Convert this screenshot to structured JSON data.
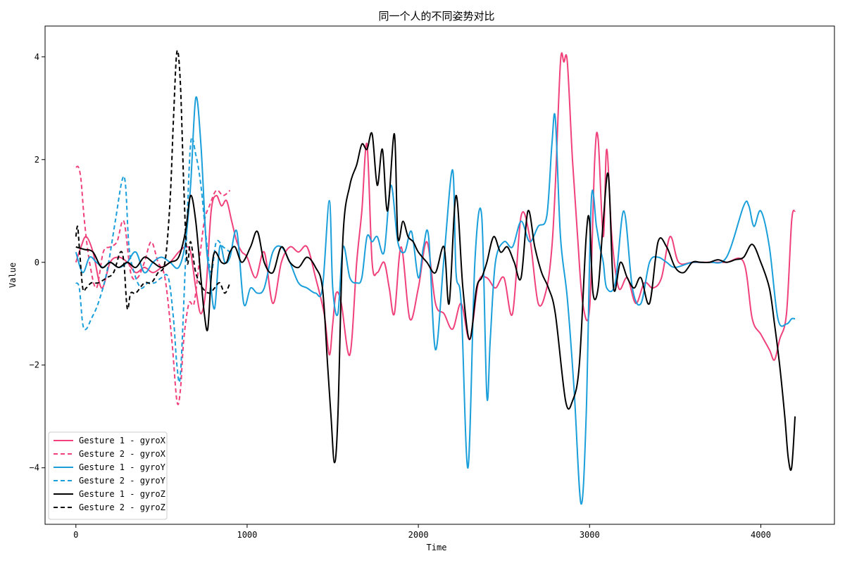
{
  "chart_data": {
    "type": "line",
    "title": "同一个人的不同姿势对比",
    "xlabel": "Time",
    "ylabel": "Value",
    "xlim": [
      -180,
      4430
    ],
    "ylim": [
      -5.1,
      4.6
    ],
    "xticks": [
      0,
      1000,
      2000,
      3000,
      4000
    ],
    "yticks": [
      -4,
      -2,
      0,
      2,
      4
    ],
    "grid": false,
    "legend_position": "lower-left",
    "series": [
      {
        "name": "Gesture 1 - gyroX",
        "color": "#F0417A",
        "dash": "solid",
        "x": [
          0,
          30,
          60,
          100,
          150,
          200,
          250,
          300,
          350,
          400,
          450,
          500,
          550,
          600,
          640,
          670,
          700,
          730,
          760,
          790,
          820,
          850,
          880,
          910,
          940,
          970,
          1000,
          1050,
          1100,
          1150,
          1200,
          1250,
          1300,
          1350,
          1400,
          1450,
          1480,
          1500,
          1520,
          1550,
          1600,
          1640,
          1670,
          1700,
          1730,
          1760,
          1800,
          1830,
          1860,
          1900,
          1950,
          2000,
          2050,
          2100,
          2150,
          2200,
          2250,
          2300,
          2350,
          2400,
          2450,
          2500,
          2550,
          2600,
          2650,
          2700,
          2750,
          2780,
          2800,
          2830,
          2850,
          2870,
          2900,
          2930,
          2960,
          3000,
          3030,
          3050,
          3080,
          3100,
          3130,
          3170,
          3220,
          3270,
          3320,
          3370,
          3420,
          3470,
          3520,
          3600,
          3700,
          3800,
          3900,
          3950,
          4000,
          4050,
          4080,
          4110,
          4150,
          4180,
          4200
        ],
        "y": [
          0.0,
          0.3,
          0.5,
          0.2,
          -0.5,
          0.0,
          0.1,
          0.0,
          -0.2,
          -0.1,
          -0.2,
          -0.1,
          0.0,
          0.2,
          0.3,
          0.2,
          -0.5,
          -1.0,
          -0.5,
          1.0,
          1.3,
          1.1,
          1.2,
          0.8,
          0.4,
          0.2,
          0.1,
          -0.3,
          0.2,
          -0.8,
          0.0,
          0.3,
          0.2,
          0.3,
          -0.3,
          -1.0,
          -1.8,
          -1.2,
          -0.6,
          -0.8,
          -1.8,
          0.0,
          1.0,
          2.3,
          0.0,
          -0.2,
          0.0,
          -0.5,
          -1.0,
          0.3,
          -1.1,
          -0.5,
          0.4,
          -0.8,
          -1.0,
          -1.3,
          -0.8,
          -1.5,
          -0.4,
          -0.3,
          -0.5,
          -0.3,
          -1.0,
          0.9,
          0.5,
          -0.8,
          -0.5,
          0.3,
          1.5,
          3.9,
          3.9,
          3.9,
          2.0,
          0.5,
          -0.8,
          -0.9,
          2.0,
          2.4,
          0.5,
          2.2,
          0.5,
          -0.5,
          -0.3,
          -0.8,
          -0.4,
          -0.5,
          -0.3,
          0.5,
          0.0,
          0.0,
          0.0,
          0.0,
          0.0,
          -1.1,
          -1.4,
          -1.7,
          -1.9,
          -1.5,
          -1.0,
          0.8,
          1.0
        ]
      },
      {
        "name": "Gesture 2 - gyroX",
        "color": "#F0417A",
        "dash": "dashed",
        "x": [
          0,
          15,
          30,
          50,
          80,
          120,
          160,
          200,
          240,
          280,
          320,
          360,
          400,
          440,
          480,
          520,
          560,
          590,
          610,
          630,
          660,
          690,
          720,
          750,
          780,
          820,
          860,
          900
        ],
        "y": [
          1.85,
          1.85,
          1.6,
          0.8,
          0.0,
          -0.5,
          0.2,
          0.3,
          0.4,
          0.8,
          -0.2,
          -0.3,
          0.0,
          0.4,
          0.0,
          -0.3,
          -1.5,
          -2.7,
          -2.5,
          -1.5,
          -0.8,
          -0.8,
          0.0,
          0.8,
          1.1,
          1.4,
          1.3,
          1.4
        ]
      },
      {
        "name": "Gesture 1 - gyroY",
        "color": "#1A9FDB",
        "dash": "solid",
        "x": [
          0,
          40,
          80,
          120,
          160,
          200,
          250,
          300,
          350,
          400,
          450,
          500,
          550,
          600,
          640,
          670,
          700,
          730,
          760,
          780,
          810,
          840,
          870,
          900,
          940,
          980,
          1020,
          1060,
          1100,
          1150,
          1200,
          1250,
          1300,
          1350,
          1400,
          1440,
          1480,
          1500,
          1530,
          1560,
          1600,
          1640,
          1670,
          1700,
          1730,
          1760,
          1800,
          1840,
          1880,
          1920,
          1960,
          2000,
          2030,
          2060,
          2100,
          2150,
          2200,
          2220,
          2250,
          2290,
          2330,
          2370,
          2400,
          2420,
          2450,
          2500,
          2550,
          2600,
          2650,
          2700,
          2750,
          2780,
          2800,
          2830,
          2870,
          2910,
          2950,
          2980,
          3010,
          3040,
          3060,
          3080,
          3100,
          3150,
          3200,
          3250,
          3300,
          3350,
          3400,
          3450,
          3500,
          3600,
          3700,
          3800,
          3900,
          3930,
          3960,
          4000,
          4050,
          4100,
          4150,
          4180,
          4200
        ],
        "y": [
          0.2,
          -0.2,
          0.1,
          0.0,
          -0.1,
          0.0,
          -0.1,
          0.0,
          0.2,
          -0.2,
          0.0,
          0.1,
          0.0,
          -0.1,
          0.4,
          1.5,
          3.2,
          2.3,
          0.4,
          -0.2,
          -0.9,
          0.3,
          0.0,
          0.1,
          0.6,
          -0.8,
          -0.5,
          -0.6,
          -0.5,
          0.2,
          0.3,
          0.0,
          -0.4,
          -0.5,
          -0.6,
          -0.5,
          1.2,
          -0.5,
          -1.0,
          0.3,
          -0.3,
          -0.4,
          -0.3,
          0.5,
          0.4,
          0.5,
          0.2,
          1.5,
          0.4,
          0.2,
          0.6,
          -0.3,
          0.3,
          0.5,
          -1.7,
          0.1,
          1.8,
          -0.2,
          -0.8,
          -4.0,
          0.0,
          0.9,
          -2.6,
          -1.5,
          0.0,
          0.4,
          0.3,
          0.8,
          0.4,
          0.7,
          0.9,
          2.3,
          2.8,
          0.5,
          -0.7,
          -2.5,
          -4.7,
          -3.0,
          1.2,
          0.7,
          0.3,
          0.0,
          -0.5,
          -0.4,
          1.0,
          -0.5,
          -0.8,
          0.0,
          0.1,
          0.0,
          -0.1,
          0.0,
          0.0,
          0.1,
          1.1,
          1.1,
          0.7,
          1.0,
          0.3,
          -1.1,
          -1.2,
          -1.1,
          -1.1
        ]
      },
      {
        "name": "Gesture 2 - gyroY",
        "color": "#1A9FDB",
        "dash": "dashed",
        "x": [
          0,
          20,
          40,
          60,
          90,
          130,
          180,
          230,
          270,
          290,
          310,
          340,
          380,
          420,
          460,
          500,
          540,
          570,
          590,
          610,
          640,
          670,
          700,
          730,
          760,
          790,
          820,
          860,
          900
        ],
        "y": [
          -0.4,
          -0.5,
          -1.2,
          -1.3,
          -1.1,
          -0.8,
          -0.2,
          0.8,
          1.6,
          1.5,
          0.3,
          -0.2,
          -0.5,
          -0.4,
          -0.4,
          -0.3,
          -0.3,
          -1.1,
          -2.0,
          -2.2,
          0.0,
          2.3,
          2.1,
          1.5,
          0.5,
          -0.2,
          0.4,
          0.3,
          0.2
        ]
      },
      {
        "name": "Gesture 1 - gyroZ",
        "color": "#000000",
        "dash": "solid",
        "x": [
          0,
          50,
          100,
          150,
          200,
          250,
          300,
          350,
          400,
          450,
          500,
          550,
          600,
          640,
          670,
          700,
          730,
          750,
          770,
          790,
          810,
          850,
          880,
          900,
          930,
          970,
          1020,
          1060,
          1100,
          1150,
          1200,
          1250,
          1300,
          1350,
          1400,
          1440,
          1470,
          1490,
          1510,
          1530,
          1560,
          1600,
          1640,
          1670,
          1700,
          1730,
          1760,
          1790,
          1820,
          1860,
          1880,
          1910,
          1940,
          1970,
          2000,
          2050,
          2100,
          2150,
          2180,
          2220,
          2260,
          2300,
          2340,
          2370,
          2400,
          2440,
          2480,
          2520,
          2560,
          2600,
          2640,
          2680,
          2720,
          2760,
          2800,
          2860,
          2900,
          2940,
          2980,
          3000,
          3020,
          3050,
          3080,
          3110,
          3140,
          3180,
          3220,
          3260,
          3300,
          3350,
          3400,
          3450,
          3500,
          3550,
          3600,
          3650,
          3700,
          3750,
          3800,
          3850,
          3900,
          3950,
          4000,
          4050,
          4080,
          4110,
          4140,
          4160,
          4180,
          4200
        ],
        "y": [
          0.3,
          0.25,
          0.2,
          -0.1,
          0.0,
          -0.1,
          0.0,
          -0.1,
          0.1,
          0.0,
          -0.1,
          0.0,
          0.1,
          0.6,
          1.3,
          0.8,
          -0.3,
          -1.0,
          -1.3,
          -0.3,
          0.2,
          0.0,
          0.0,
          0.2,
          0.3,
          0.0,
          0.3,
          0.6,
          0.0,
          -0.2,
          0.3,
          0.0,
          -0.1,
          0.1,
          -0.1,
          -0.5,
          -2.0,
          -3.0,
          -3.9,
          -3.0,
          0.5,
          1.5,
          1.9,
          2.3,
          2.2,
          2.5,
          1.5,
          2.2,
          1.0,
          2.5,
          0.5,
          0.8,
          0.5,
          0.4,
          0.2,
          0.0,
          -0.2,
          0.3,
          -0.8,
          1.3,
          -0.5,
          -1.5,
          -0.5,
          -0.3,
          0.0,
          0.5,
          0.2,
          0.3,
          0.0,
          -0.3,
          1.0,
          0.3,
          -0.2,
          -0.5,
          -1.0,
          -2.7,
          -2.7,
          -2.0,
          0.5,
          0.8,
          -0.6,
          -0.5,
          0.8,
          1.7,
          -0.5,
          0.0,
          -0.3,
          -0.5,
          -0.3,
          -0.8,
          0.4,
          0.3,
          -0.1,
          -0.2,
          0.0,
          0.0,
          0.0,
          0.05,
          0.0,
          0.05,
          0.1,
          0.35,
          0.0,
          -0.5,
          -1.2,
          -2.0,
          -3.0,
          -3.8,
          -4.0,
          -3.0
        ]
      },
      {
        "name": "Gesture 2 - gyroZ",
        "color": "#000000",
        "dash": "dashed",
        "x": [
          0,
          10,
          20,
          40,
          60,
          90,
          130,
          180,
          220,
          260,
          280,
          300,
          320,
          350,
          400,
          440,
          480,
          520,
          550,
          570,
          590,
          610,
          630,
          650,
          670,
          700,
          740,
          780,
          810,
          840,
          870,
          900
        ],
        "y": [
          0.5,
          0.7,
          0.3,
          -0.5,
          -0.5,
          -0.4,
          -0.4,
          -0.3,
          -0.2,
          0.2,
          0.0,
          -0.9,
          -0.6,
          -0.6,
          -0.4,
          -0.4,
          -0.2,
          0.0,
          1.2,
          2.8,
          4.1,
          3.5,
          1.5,
          0.0,
          0.4,
          -0.2,
          -0.5,
          -0.6,
          -0.5,
          -0.4,
          -0.6,
          -0.4
        ]
      }
    ]
  }
}
